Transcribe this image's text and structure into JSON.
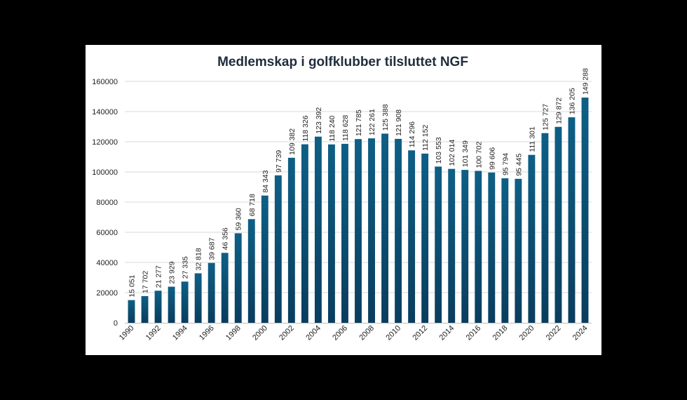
{
  "chart_data": {
    "type": "bar",
    "title": "Medlemskap i golfklubber tilsluttet NGF",
    "xlabel": "",
    "ylabel": "",
    "ylim": [
      0,
      160000
    ],
    "y_ticks": [
      0,
      20000,
      40000,
      60000,
      80000,
      100000,
      120000,
      140000,
      160000
    ],
    "y_tick_labels": [
      "0",
      "20000",
      "40000",
      "60000",
      "80000",
      "100000",
      "120000",
      "140000",
      "160000"
    ],
    "grid": true,
    "legend": "none",
    "categories": [
      "1990",
      "1991",
      "1992",
      "1993",
      "1994",
      "1995",
      "1996",
      "1997",
      "1998",
      "1999",
      "2000",
      "2001",
      "2002",
      "2003",
      "2004",
      "2005",
      "2006",
      "2007",
      "2008",
      "2009",
      "2010",
      "2011",
      "2012",
      "2013",
      "2014",
      "2015",
      "2016",
      "2017",
      "2018",
      "2019",
      "2020",
      "2021",
      "2022",
      "2023",
      "2024"
    ],
    "x_tick_labels": [
      "1990",
      "",
      "1992",
      "",
      "1994",
      "",
      "1996",
      "",
      "1998",
      "",
      "2000",
      "",
      "2002",
      "",
      "2004",
      "",
      "2006",
      "",
      "2008",
      "",
      "2010",
      "",
      "2012",
      "",
      "2014",
      "",
      "2016",
      "",
      "2018",
      "",
      "2020",
      "",
      "2022",
      "",
      "2024"
    ],
    "values": [
      15051,
      17702,
      21277,
      23929,
      27335,
      32818,
      39687,
      46356,
      59360,
      68718,
      84343,
      97739,
      109382,
      118326,
      123392,
      118240,
      118628,
      121785,
      122261,
      125388,
      121908,
      114296,
      112152,
      103553,
      102014,
      101349,
      100702,
      99606,
      95794,
      95445,
      111301,
      125727,
      129872,
      136205,
      149288
    ],
    "data_labels": [
      "15 051",
      "17 702",
      "21 277",
      "23 929",
      "27 335",
      "32 818",
      "39 687",
      "46 356",
      "59 360",
      "68 718",
      "84 343",
      "97 739",
      "109 382",
      "118 326",
      "123 392",
      "118 240",
      "118 628",
      "121 785",
      "122 261",
      "125 388",
      "121 908",
      "114 296",
      "112 152",
      "103 553",
      "102 014",
      "101 349",
      "100 702",
      "99 606",
      "95 794",
      "95 445",
      "111 301",
      "125 727",
      "129 872",
      "136 205",
      "149 288"
    ],
    "colors": {
      "bar_top": "#0e5f86",
      "bar_bottom": "#0a3d5e",
      "grid": "#d9d9d9",
      "axis": "#bfbfbf",
      "background": "#ffffff",
      "page": "#000000"
    }
  }
}
